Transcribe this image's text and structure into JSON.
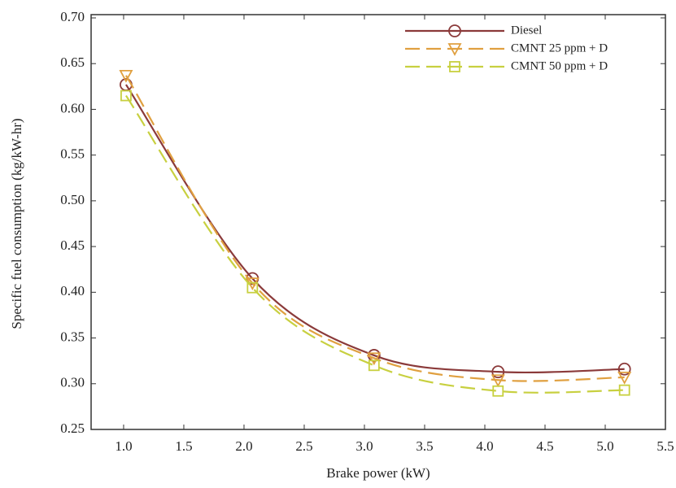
{
  "chart_data": {
    "type": "line",
    "x_label": "Brake power (kW)",
    "y_label": "Specific fuel consumption (kg/kW-hr)",
    "x": [
      1.02,
      2.07,
      3.08,
      4.11,
      5.16
    ],
    "series": [
      {
        "name": "Diesel",
        "color": "#8b3a3a",
        "marker": "circle",
        "dashed": false,
        "values": [
          0.627,
          0.415,
          0.331,
          0.313,
          0.316
        ]
      },
      {
        "name": "CMNT 25 ppm + D",
        "color": "#e0a040",
        "marker": "triangle-down",
        "dashed": true,
        "values": [
          0.637,
          0.41,
          0.328,
          0.304,
          0.307
        ]
      },
      {
        "name": "CMNT 50 ppm + D",
        "color": "#c8d040",
        "marker": "square",
        "dashed": true,
        "values": [
          0.615,
          0.405,
          0.32,
          0.292,
          0.293
        ]
      }
    ],
    "xlim": [
      0.73,
      5.5
    ],
    "ylim": [
      0.25,
      0.7
    ],
    "xticks": [
      {
        "value": 1,
        "label": "1.0"
      },
      1.5,
      {
        "value": 2,
        "label": "2.0"
      },
      2.5,
      {
        "value": 3,
        "label": "3.0"
      },
      3.5,
      {
        "value": 4,
        "label": "4.0"
      },
      4.5,
      {
        "value": 5,
        "label": "5.0"
      },
      5.5
    ],
    "yticks": [
      0.25,
      {
        "value": 0.3,
        "label": "0.30"
      },
      0.35,
      {
        "value": 0.4,
        "label": "0.40"
      },
      0.45,
      {
        "value": 0.5,
        "label": "0.50"
      },
      0.55,
      {
        "value": 0.6,
        "label": "0.60"
      },
      0.65,
      {
        "value": 0.7,
        "label": "0.70"
      }
    ],
    "legend": "upper right",
    "grid": false
  }
}
